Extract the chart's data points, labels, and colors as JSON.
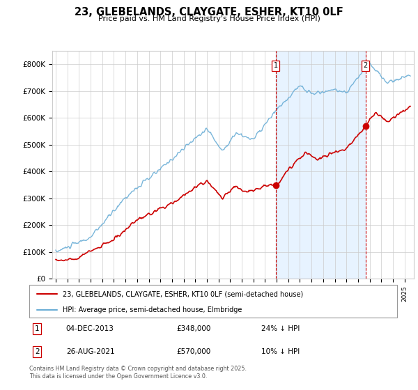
{
  "title": "23, GLEBELANDS, CLAYGATE, ESHER, KT10 0LF",
  "subtitle": "Price paid vs. HM Land Registry's House Price Index (HPI)",
  "legend_house": "23, GLEBELANDS, CLAYGATE, ESHER, KT10 0LF (semi-detached house)",
  "legend_hpi": "HPI: Average price, semi-detached house, Elmbridge",
  "footer": "Contains HM Land Registry data © Crown copyright and database right 2025.\nThis data is licensed under the Open Government Licence v3.0.",
  "annotation1_label": "1",
  "annotation1_date": "04-DEC-2013",
  "annotation1_price": "£348,000",
  "annotation1_hpi": "24% ↓ HPI",
  "annotation2_label": "2",
  "annotation2_date": "26-AUG-2021",
  "annotation2_price": "£570,000",
  "annotation2_hpi": "10% ↓ HPI",
  "house_color": "#cc0000",
  "hpi_color": "#6baed6",
  "shade_color": "#ddeeff",
  "vline_color": "#cc0000",
  "ylim_min": 0,
  "ylim_max": 850000,
  "yticks": [
    0,
    100000,
    200000,
    300000,
    400000,
    500000,
    600000,
    700000,
    800000
  ],
  "ytick_labels": [
    "£0",
    "£100K",
    "£200K",
    "£300K",
    "£400K",
    "£500K",
    "£600K",
    "£700K",
    "£800K"
  ],
  "sale1_year": 2013.92,
  "sale1_value": 348000,
  "sale2_year": 2021.65,
  "sale2_value": 570000
}
